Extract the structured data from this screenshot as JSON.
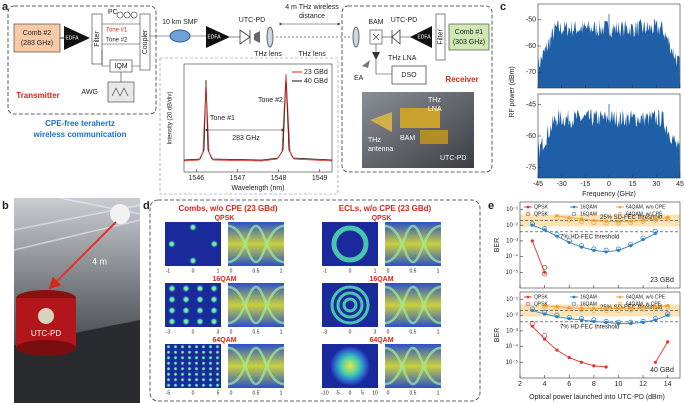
{
  "panel_a": {
    "label": "a",
    "comb2": "Comb #2",
    "comb2_freq": "(283 GHz)",
    "edfa_tx": "EDFA",
    "filter_tx": "Filter",
    "pc": "PC",
    "tone1": "Tone #1",
    "tone2": "Tone #2",
    "coupler": "Coupler",
    "iqm": "IQM",
    "awg": "AWG",
    "transmitter": "Transmitter",
    "caption1": "CPE-free terahertz",
    "caption2": "wireless communication",
    "smf": "10 km SMF",
    "edfa_mid": "EDFA",
    "utcpd_tx": "UTC-PD",
    "lens1": "THz lens",
    "distance1": "4 m THz wireless",
    "distance2": "distance",
    "lens2": "THz lens",
    "bam": "BAM",
    "lna": "THz LNA",
    "utcpd_rx": "UTC-PD",
    "edfa_rx": "EDFA",
    "filter_rx": "Filter",
    "comb1": "Comb #1",
    "comb1_freq": "(303 GHz)",
    "ea": "EA",
    "dso": "DSO",
    "receiver": "Receiver",
    "photo_antenna1": "THz",
    "photo_antenna2": "antenna",
    "photo_bam": "BAM",
    "photo_lna1": "THz",
    "photo_lna2": "LNA",
    "photo_utcpd": "UTC-PD",
    "inset": {
      "legend": [
        "23 GBd",
        "40 GBd"
      ],
      "tone1": "Tone #1",
      "tone2": "Tone #2",
      "freq": "283 GHz",
      "ylabel": "Intensity (20 dB/div)",
      "xlabel": "Wavelength (nm)",
      "xlim": [
        1545.7,
        1549.3
      ],
      "xticks": [
        1546,
        1547,
        1548,
        1549
      ]
    }
  },
  "panel_b": {
    "label": "b",
    "distance": "4 m",
    "utcpd": "UTC-PD"
  },
  "panel_c": {
    "label": "c",
    "ylabel": "RF power (dBm)",
    "xlabel": "Frequency (GHz)",
    "xlim": [
      -45,
      45
    ],
    "xticks": [
      -45,
      -30,
      -15,
      0,
      15,
      30,
      45
    ],
    "plots": [
      {
        "name": "23 GBd",
        "ylim": [
          -76,
          -44
        ],
        "yticks": [
          -70,
          -60,
          -50
        ]
      },
      {
        "name": "40 GBd",
        "ylim": [
          -80,
          -40
        ],
        "yticks": [
          -75,
          -60,
          -45
        ]
      }
    ]
  },
  "panel_d": {
    "label": "d",
    "titles": [
      "Combs, w/o CPE (23 GBd)",
      "ECLs, w/o CPE (23 GBd)"
    ],
    "rows": [
      {
        "format": "QPSK",
        "comb_ticks": [
          -1,
          0,
          1
        ],
        "ecl_ticks": [
          -1,
          0,
          1
        ],
        "eye_ticks": [
          0,
          0.5,
          1
        ]
      },
      {
        "format": "16QAM",
        "comb_ticks": [
          -3,
          0,
          3
        ],
        "ecl_ticks": [
          -3,
          0,
          3
        ],
        "eye_ticks": [
          0,
          0.5,
          1
        ]
      },
      {
        "format": "64QAM",
        "comb_ticks": [
          -5,
          0,
          5
        ],
        "ecl_ticks": [
          -10,
          -5,
          0,
          5,
          10
        ],
        "eye_ticks": [
          0,
          0.5,
          1
        ]
      }
    ]
  },
  "panel_e": {
    "label": "e",
    "xlabel": "Optical power launched into UTC-PD (dBm)",
    "ylabel": "BER",
    "log_y": true,
    "xlim": [
      2,
      15
    ],
    "xticks": [
      2,
      4,
      6,
      8,
      10,
      12,
      14
    ],
    "ylim": [
      1e-06,
      0.3
    ],
    "yticks": [
      {
        "value": 0.1,
        "label": "10⁻¹"
      },
      {
        "value": 0.01,
        "label": "10⁻²"
      },
      {
        "value": 0.001,
        "label": "10⁻³"
      },
      {
        "value": 0.0001,
        "label": "10⁻⁴"
      },
      {
        "value": 1e-05,
        "label": "10⁻⁵"
      }
    ],
    "sd_fec": {
      "value": 0.02,
      "label": "25% SD-FEC threshold"
    },
    "hd_fec": {
      "value": 0.0038,
      "label": "7% HD-FEC threshold"
    },
    "plots": [
      {
        "name": "23 GBd",
        "series": [
          {
            "name": "QPSK",
            "color": "#e8302a",
            "style": "line",
            "x": [
              3,
              4
            ],
            "values": [
              0.001,
              1e-05
            ]
          },
          {
            "name": "16QAM",
            "color": "#2f7fc1",
            "style": "line",
            "x": [
              3,
              4,
              5,
              6,
              7,
              8,
              9,
              10,
              11,
              12,
              13
            ],
            "values": [
              0.01,
              0.005,
              0.002,
              0.0008,
              0.0004,
              0.00025,
              0.0002,
              0.00025,
              0.0005,
              0.0012,
              0.003
            ]
          },
          {
            "name": "64QAM, w/o CPE",
            "color": "#f0a030",
            "style": "line",
            "x": [
              5,
              6,
              7,
              8,
              9,
              10,
              11,
              12,
              13,
              14
            ],
            "values": [
              0.04,
              0.03,
              0.025,
              0.02,
              0.018,
              0.017,
              0.018,
              0.02,
              0.025,
              0.03
            ]
          },
          {
            "name": "QPSK",
            "color": "#e8302a",
            "style": "open",
            "x": [
              4,
              4
            ],
            "values": [
              2e-05,
              8e-06
            ]
          },
          {
            "name": "16QAM",
            "color": "#2f7fc1",
            "style": "open",
            "x": [
              3,
              4,
              5,
              6,
              7,
              8,
              9,
              10,
              11,
              12,
              13
            ],
            "values": [
              0.012,
              0.006,
              0.0025,
              0.001,
              0.0005,
              0.0003,
              0.00025,
              0.0003,
              0.0006,
              0.0015,
              0.004
            ]
          },
          {
            "name": "64QAM, w/ CPE",
            "color": "#f0a030",
            "style": "open",
            "x": [
              5,
              6,
              7,
              8,
              9,
              10,
              11,
              12,
              13,
              14
            ],
            "values": [
              0.03,
              0.022,
              0.018,
              0.015,
              0.014,
              0.014,
              0.015,
              0.018,
              0.022,
              0.028
            ]
          }
        ]
      },
      {
        "name": "40 GBd",
        "series": [
          {
            "name": "QPSK",
            "color": "#e8302a",
            "style": "line",
            "x": [
              3,
              4,
              5,
              6,
              7,
              8,
              9,
              11,
              13,
              14
            ],
            "values": [
              0.002,
              0.0003,
              6e-05,
              2e-05,
              1e-05,
              6e-06,
              5e-06,
              null,
              1e-05,
              0.0002
            ]
          },
          {
            "name": "16QAM",
            "color": "#2f7fc1",
            "style": "line",
            "x": [
              3,
              4,
              5,
              6,
              7,
              8,
              9,
              10,
              11,
              12,
              13,
              14
            ],
            "values": [
              0.02,
              0.012,
              0.008,
              0.006,
              0.005,
              0.004,
              0.0035,
              0.003,
              0.003,
              0.0035,
              0.005,
              0.01
            ]
          },
          {
            "name": "64QAM, w/o CPE",
            "color": "#f0a030",
            "style": "line",
            "x": [
              4,
              5,
              6,
              7,
              8,
              9,
              10,
              11,
              12,
              13,
              14
            ],
            "values": [
              0.04,
              0.035,
              0.03,
              0.028,
              0.027,
              0.026,
              0.027,
              0.028,
              0.03,
              0.033,
              0.04
            ]
          },
          {
            "name": "QPSK",
            "color": "#e8302a",
            "style": "open",
            "x": [
              3,
              4
            ],
            "values": [
              0.003,
              0.0005
            ]
          },
          {
            "name": "16QAM",
            "color": "#2f7fc1",
            "style": "open",
            "x": [
              3,
              4,
              5,
              6,
              7,
              8,
              9,
              10,
              11,
              12,
              13,
              14
            ],
            "values": [
              0.025,
              0.015,
              0.01,
              0.007,
              0.006,
              0.005,
              0.004,
              0.0035,
              0.0035,
              0.004,
              0.006,
              0.012
            ]
          },
          {
            "name": "64QAM, w CPE",
            "color": "#f0a030",
            "style": "open",
            "x": [
              4,
              5,
              6,
              7,
              8,
              9,
              10,
              11,
              12,
              13,
              14
            ],
            "values": [
              0.035,
              0.03,
              0.025,
              0.022,
              0.02,
              0.02,
              0.02,
              0.022,
              0.025,
              0.03,
              0.035
            ]
          }
        ]
      }
    ]
  }
}
